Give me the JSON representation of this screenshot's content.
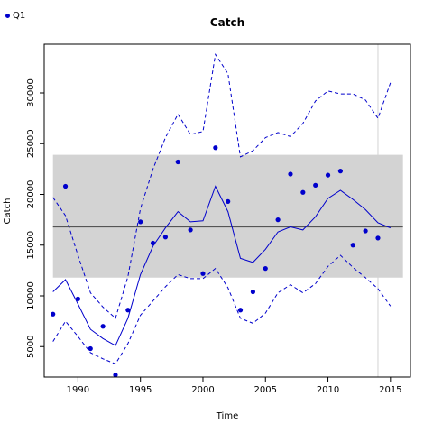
{
  "legend": {
    "label": "Q1",
    "color": "#0000cc"
  },
  "chart_data": {
    "type": "line",
    "title": "Catch",
    "xlabel": "Time",
    "ylabel": "Catch",
    "xlim": [
      1987.3,
      2016.6
    ],
    "ylim": [
      2000,
      34800
    ],
    "x_ticks": [
      1990,
      1995,
      2000,
      2005,
      2010,
      2015
    ],
    "y_ticks": [
      5000,
      10000,
      15000,
      20000,
      25000,
      30000
    ],
    "grid": false,
    "legend_position": "top-left",
    "band": {
      "x": [
        1988,
        2016
      ],
      "ymin": 11800,
      "ymax": 23900,
      "color": "#d3d3d3"
    },
    "hline": {
      "y": 16800,
      "x": [
        1988,
        2016
      ],
      "color": "#555555"
    },
    "vline": {
      "x": 2014,
      "color": "#d3d3d3"
    },
    "series": [
      {
        "name": "Q1",
        "kind": "points",
        "color": "#0000cc",
        "x": [
          1988,
          1989,
          1990,
          1991,
          1992,
          1993,
          1994,
          1995,
          1996,
          1997,
          1998,
          1999,
          2000,
          2001,
          2002,
          2003,
          2004,
          2005,
          2006,
          2007,
          2008,
          2009,
          2010,
          2011,
          2012,
          2013,
          2014
        ],
        "y": [
          8200,
          20800,
          9700,
          4800,
          7000,
          2200,
          8600,
          17300,
          15200,
          15800,
          23200,
          16500,
          12200,
          24600,
          19300,
          8600,
          10400,
          12700,
          17500,
          22000,
          20200,
          20900,
          21900,
          22300,
          15000,
          16400,
          15700
        ]
      },
      {
        "kind": "line",
        "style": "solid",
        "color": "#0000cc",
        "x": [
          1988,
          1989,
          1990,
          1991,
          1992,
          1993,
          1994,
          1995,
          1996,
          1997,
          1998,
          1999,
          2000,
          2001,
          2002,
          2003,
          2004,
          2005,
          2006,
          2007,
          2008,
          2009,
          2010,
          2011,
          2012,
          2013,
          2014,
          2015
        ],
        "y": [
          10400,
          11600,
          9200,
          6700,
          5800,
          5100,
          7800,
          12100,
          14900,
          16700,
          18300,
          17300,
          17400,
          20800,
          18300,
          13700,
          13300,
          14600,
          16300,
          16800,
          16500,
          17800,
          19600,
          20400,
          19500,
          18500,
          17200,
          16700
        ]
      },
      {
        "kind": "line",
        "style": "dashed",
        "color": "#0000cc",
        "x": [
          1988,
          1989,
          1990,
          1991,
          1992,
          1993,
          1994,
          1995,
          1996,
          1997,
          1998,
          1999,
          2000,
          2001,
          2002,
          2003,
          2004,
          2005,
          2006,
          2007,
          2008,
          2009,
          2010,
          2011,
          2012,
          2013,
          2014,
          2015
        ],
        "y": [
          19700,
          17900,
          14000,
          10300,
          8900,
          7800,
          11900,
          18600,
          22500,
          25600,
          27900,
          25900,
          26200,
          33800,
          31900,
          23700,
          24300,
          25600,
          26100,
          25700,
          27000,
          29200,
          30200,
          29900,
          29900,
          29300,
          27500,
          31000
        ]
      },
      {
        "kind": "line",
        "style": "dashed",
        "color": "#0000cc",
        "x": [
          1988,
          1989,
          1990,
          1991,
          1992,
          1993,
          1994,
          1995,
          1996,
          1997,
          1998,
          1999,
          2000,
          2001,
          2002,
          2003,
          2004,
          2005,
          2006,
          2007,
          2008,
          2009,
          2010,
          2011,
          2012,
          2013,
          2014,
          2015
        ],
        "y": [
          5500,
          7500,
          6000,
          4400,
          3800,
          3300,
          5300,
          8100,
          9500,
          10900,
          12100,
          11700,
          11700,
          12700,
          10800,
          7800,
          7300,
          8300,
          10300,
          11100,
          10300,
          11200,
          12900,
          14000,
          12800,
          11800,
          10700,
          9000
        ]
      }
    ]
  }
}
